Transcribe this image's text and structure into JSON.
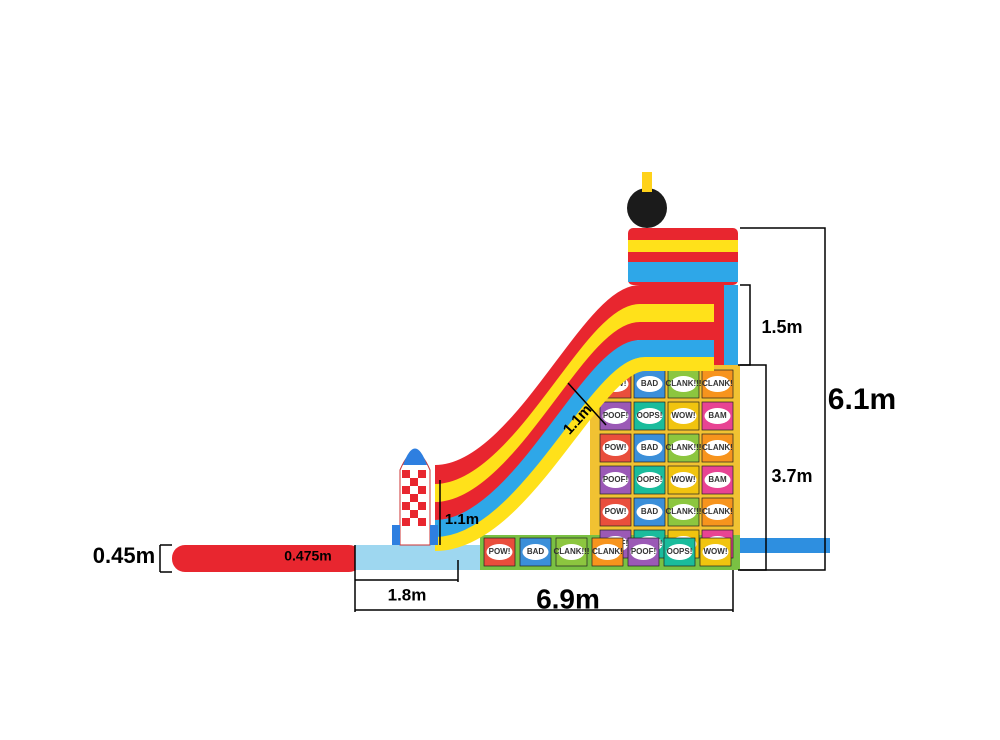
{
  "title_dimensions": {
    "total_height": "6.1m",
    "platform_height": "1.5m",
    "wall_height": "3.7m",
    "slide_width": "1.1m",
    "side_wall_height": "1.1m",
    "tube_diameter": "0.45m",
    "pool_depth": "0.475m",
    "runout_length": "1.8m",
    "total_length": "6.9m"
  },
  "comic_words": [
    "POW!",
    "BAD",
    "CLANK!!!",
    "CLANK!",
    "POOF!",
    "OOPS!",
    "WOW!",
    "BAM"
  ]
}
